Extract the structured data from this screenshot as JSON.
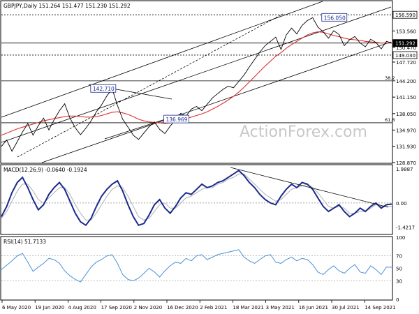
{
  "chart_data": {
    "type": "line",
    "instrument_label": "GBPJPY,Daily  151.264 151.477 151.230 151.292",
    "watermark": "ActionForex.com",
    "x_ticks": [
      "6 May 2020",
      "19 Jun 2020",
      "4 Aug 2020",
      "17 Sep 2020",
      "2 Nov 2020",
      "16 Dec 2020",
      "2 Feb 2021",
      "18 Mar 2021",
      "3 May 2021",
      "16 Jun 2021",
      "30 Jul 2021",
      "14 Sep 2021"
    ],
    "price_panel": {
      "y_range": [
        128.87,
        159.1
      ],
      "y_ticks": [
        156.59,
        153.56,
        150.47,
        147.72,
        144.2,
        141.15,
        138.05,
        134.97,
        131.93,
        128.87
      ],
      "y_tick_labels": [
        "156.590",
        "153.560",
        "150.470",
        "147.720",
        "144.200",
        "141.150",
        "138.050",
        "134.970",
        "131.930",
        "128.870"
      ],
      "current_price": 151.292,
      "current_price_label": "151.292",
      "support_level": 149.03,
      "support_label": "149.030",
      "high_level": 156.59,
      "high_label": "156.590",
      "callouts": [
        {
          "label": "156.050",
          "value": 156.05,
          "bar": 255
        },
        {
          "label": "142.710",
          "value": 142.71,
          "bar": 78
        },
        {
          "label": "136.969",
          "value": 136.969,
          "bar": 134
        }
      ],
      "fib_levels": [
        {
          "label": "38.2",
          "value": 144.2
        },
        {
          "label": "61.8",
          "value": 136.34
        }
      ],
      "series": [
        {
          "name": "",
          "color": "#000000",
          "values": [
            131.9,
            133.1,
            131.0,
            132.8,
            134.6,
            136.2,
            134.0,
            135.8,
            137.2,
            135.0,
            136.9,
            138.6,
            139.9,
            137.2,
            135.4,
            134.1,
            135.3,
            136.7,
            138.4,
            139.7,
            141.4,
            142.7,
            139.6,
            137.0,
            135.5,
            134.0,
            133.2,
            134.4,
            135.6,
            136.5,
            135.1,
            134.3,
            135.7,
            136.9,
            138.1,
            137.6,
            138.9,
            139.4,
            138.6,
            139.8,
            141.0,
            141.8,
            142.6,
            143.2,
            142.9,
            144.1,
            145.3,
            146.8,
            148.2,
            149.6,
            150.8,
            151.6,
            152.4,
            150.1,
            152.8,
            154.1,
            153.0,
            154.6,
            155.5,
            156.05,
            154.3,
            153.4,
            152.2,
            153.6,
            152.9,
            150.8,
            151.9,
            152.5,
            151.3,
            150.6,
            152.0,
            151.4,
            150.2,
            151.6,
            151.292
          ]
        },
        {
          "name": "",
          "color": "#e03030",
          "values": [
            134.0,
            134.4,
            134.8,
            135.2,
            135.5,
            135.8,
            136.1,
            136.4,
            136.7,
            136.9,
            137.1,
            137.3,
            137.5,
            137.6,
            137.6,
            137.5,
            137.4,
            137.4,
            137.5,
            137.7,
            138.0,
            138.3,
            138.4,
            138.2,
            137.9,
            137.5,
            137.0,
            136.7,
            136.5,
            136.4,
            136.3,
            136.2,
            136.3,
            136.5,
            136.8,
            137.1,
            137.4,
            137.7,
            138.0,
            138.4,
            138.9,
            139.4,
            140.0,
            140.6,
            141.3,
            142.1,
            143.0,
            144.0,
            145.0,
            146.0,
            147.0,
            147.9,
            148.8,
            149.5,
            150.3,
            151.0,
            151.6,
            152.2,
            152.8,
            153.2,
            153.4,
            153.3,
            153.0,
            152.7,
            152.5,
            152.2,
            152.0,
            151.9,
            151.8,
            151.6,
            151.5,
            151.4,
            151.3,
            151.3,
            151.3
          ]
        }
      ]
    },
    "macd_panel": {
      "label": "MACD(12,26,9) -0.0640 -0.1924",
      "y_range": [
        -1.8,
        2.2
      ],
      "y_ticks": [
        1.9887,
        0.0,
        -1.4217
      ],
      "y_tick_labels": [
        "1.9887",
        "0.00",
        "-1.4217"
      ],
      "series": [
        {
          "name": "",
          "color": "#1a2a8c",
          "values": [
            -0.8,
            -0.2,
            0.6,
            1.2,
            1.5,
            0.9,
            0.2,
            -0.4,
            -0.1,
            0.5,
            0.9,
            1.2,
            0.8,
            0.1,
            -0.6,
            -1.1,
            -1.3,
            -0.9,
            -0.2,
            0.4,
            0.8,
            1.1,
            1.3,
            0.7,
            -0.1,
            -0.8,
            -1.3,
            -1.2,
            -0.7,
            -0.1,
            0.2,
            -0.3,
            -0.6,
            -0.2,
            0.3,
            0.6,
            0.5,
            0.8,
            1.1,
            0.9,
            1.0,
            1.2,
            1.3,
            1.5,
            1.7,
            1.9,
            1.6,
            1.2,
            0.9,
            0.5,
            0.2,
            0.0,
            -0.1,
            0.4,
            0.8,
            1.1,
            0.9,
            1.2,
            1.1,
            0.8,
            0.3,
            -0.2,
            -0.5,
            -0.3,
            -0.1,
            -0.5,
            -0.8,
            -0.6,
            -0.3,
            -0.5,
            -0.2,
            0.0,
            -0.3,
            -0.1,
            -0.064
          ]
        },
        {
          "name": "",
          "color": "#b0b0b0",
          "values": [
            -0.9,
            -0.5,
            0.1,
            0.7,
            1.1,
            1.1,
            0.7,
            0.2,
            0.0,
            0.3,
            0.6,
            0.9,
            0.9,
            0.5,
            -0.1,
            -0.6,
            -1.0,
            -1.0,
            -0.6,
            -0.1,
            0.4,
            0.8,
            1.0,
            0.9,
            0.4,
            -0.2,
            -0.8,
            -1.0,
            -0.9,
            -0.5,
            -0.1,
            0.0,
            -0.3,
            -0.3,
            0.0,
            0.3,
            0.4,
            0.6,
            0.8,
            0.9,
            0.9,
            1.1,
            1.2,
            1.4,
            1.5,
            1.7,
            1.7,
            1.4,
            1.1,
            0.8,
            0.5,
            0.3,
            0.1,
            0.2,
            0.5,
            0.8,
            0.9,
            1.0,
            1.1,
            0.9,
            0.6,
            0.2,
            -0.2,
            -0.3,
            -0.2,
            -0.3,
            -0.6,
            -0.6,
            -0.5,
            -0.5,
            -0.3,
            -0.1,
            -0.2,
            -0.2,
            -0.1924
          ]
        }
      ]
    },
    "rsi_panel": {
      "label": "RSI(14) 51.7133",
      "y_range": [
        0,
        100
      ],
      "y_ticks": [
        100,
        70,
        50,
        30,
        0
      ],
      "y_tick_labels": [
        "100",
        "70",
        "50",
        "30",
        "0"
      ],
      "series": [
        {
          "name": "",
          "color": "#4a90d9",
          "values": [
            48,
            55,
            62,
            70,
            74,
            60,
            45,
            52,
            58,
            66,
            64,
            58,
            46,
            38,
            32,
            28,
            40,
            52,
            60,
            64,
            70,
            72,
            58,
            40,
            32,
            30,
            34,
            42,
            50,
            44,
            36,
            46,
            54,
            60,
            58,
            66,
            62,
            70,
            72,
            64,
            68,
            72,
            74,
            76,
            78,
            80,
            68,
            62,
            58,
            64,
            70,
            72,
            60,
            58,
            64,
            68,
            62,
            66,
            64,
            56,
            44,
            40,
            48,
            54,
            46,
            42,
            50,
            56,
            44,
            42,
            54,
            48,
            40,
            52,
            51.7
          ]
        }
      ]
    }
  }
}
